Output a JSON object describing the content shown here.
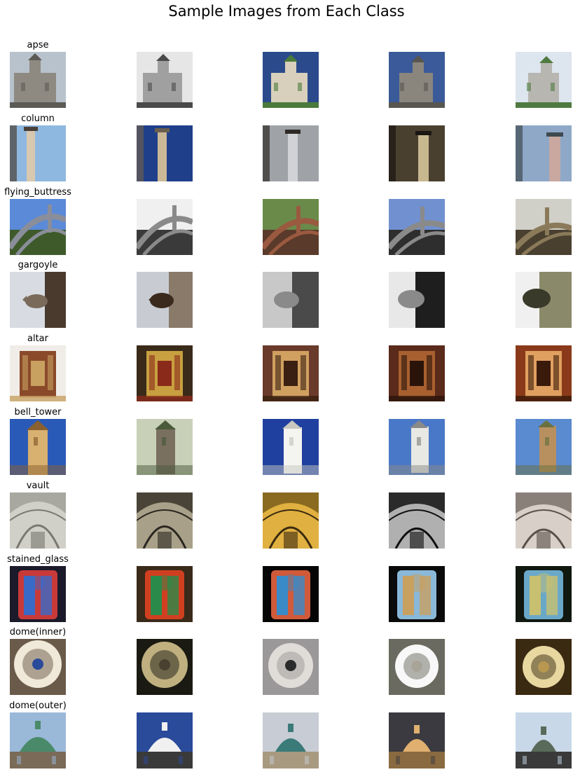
{
  "figure": {
    "title": "Sample Images from Each Class"
  },
  "rows": [
    {
      "label": "apse",
      "subject": "apse",
      "palettes": [
        [
          "#b8c2cc",
          "#8e8a82",
          "#5b5a55"
        ],
        [
          "#e6e6e6",
          "#a0a0a0",
          "#4a4a4a"
        ],
        [
          "#2a4a8c",
          "#d8d0bc",
          "#4a7a3a"
        ],
        [
          "#3a5a9a",
          "#8a867e",
          "#585650"
        ],
        [
          "#dde5ee",
          "#b8b6b0",
          "#4f7a3f"
        ]
      ]
    },
    {
      "label": "column",
      "subject": "column",
      "palettes": [
        [
          "#8fb8e0",
          "#d8c8b0",
          "#4a4038"
        ],
        [
          "#1f3f8a",
          "#cbb896",
          "#6a5e4e"
        ],
        [
          "#9fa3a8",
          "#d0d2d6",
          "#2e2a26"
        ],
        [
          "#4a4030",
          "#c8b890",
          "#1a1612"
        ],
        [
          "#8fa8c8",
          "#c8a8a0",
          "#3e4a50"
        ]
      ]
    },
    {
      "label": "flying_buttress",
      "subject": "buttress",
      "palettes": [
        [
          "#5a8ad8",
          "#8a8e9a",
          "#3e5a2a"
        ],
        [
          "#f0f0f0",
          "#8a8a8a",
          "#3a3a3a"
        ],
        [
          "#6a8a4a",
          "#9a5a40",
          "#5a3a2a"
        ],
        [
          "#7090d0",
          "#8a8a8a",
          "#2e2e2e"
        ],
        [
          "#d0d0c8",
          "#8a7a5a",
          "#4a4030"
        ]
      ]
    },
    {
      "label": "gargoyle",
      "subject": "gargoyle",
      "palettes": [
        [
          "#d8dce2",
          "#7a6a5a",
          "#4a3a2e"
        ],
        [
          "#c8ccd2",
          "#3a2a1e",
          "#8a7a6a"
        ],
        [
          "#c8c8c8",
          "#8a8a8a",
          "#4a4a4a"
        ],
        [
          "#e8e8e8",
          "#8a8a8a",
          "#1e1e1e"
        ],
        [
          "#f0f0f0",
          "#3a3a2a",
          "#8a8a6a"
        ]
      ]
    },
    {
      "label": "altar",
      "subject": "altar",
      "palettes": [
        [
          "#f0ede8",
          "#8a4a2a",
          "#c8a060"
        ],
        [
          "#3a2a1a",
          "#c8a040",
          "#8a2a1a"
        ],
        [
          "#6a3a2a",
          "#d0a060",
          "#3a2012"
        ],
        [
          "#5a2a1a",
          "#a86030",
          "#2a140a"
        ],
        [
          "#8a3a1a",
          "#e0a060",
          "#3a1a0a"
        ]
      ]
    },
    {
      "label": "bell_tower",
      "subject": "tower",
      "palettes": [
        [
          "#2a5ab8",
          "#d8b070",
          "#8a6030"
        ],
        [
          "#c8d0b8",
          "#7a7060",
          "#4a5a3a"
        ],
        [
          "#2040a0",
          "#f4f4f0",
          "#c8c8c0"
        ],
        [
          "#4a78c8",
          "#e8e8e4",
          "#8a8a88"
        ],
        [
          "#5a8ad0",
          "#b89060",
          "#6a7040"
        ]
      ]
    },
    {
      "label": "vault",
      "subject": "vault",
      "palettes": [
        [
          "#a8a8a0",
          "#d0d0c8",
          "#7a7870"
        ],
        [
          "#4a4438",
          "#a8a088",
          "#2a2620"
        ],
        [
          "#8a6a20",
          "#e0b040",
          "#3a2a10"
        ],
        [
          "#2a2a2a",
          "#b0b0b0",
          "#0e0e0e"
        ],
        [
          "#8a807a",
          "#d8d0c8",
          "#5a504a"
        ]
      ]
    },
    {
      "label": "stained_glass",
      "subject": "glass",
      "palettes": [
        [
          "#1a1a2a",
          "#c83a3a",
          "#3a6ac8"
        ],
        [
          "#3a2a1a",
          "#d04020",
          "#2a8a4a"
        ],
        [
          "#050505",
          "#d05a3a",
          "#3a8ac8"
        ],
        [
          "#0a0a0a",
          "#8ab8d8",
          "#c8a060"
        ],
        [
          "#101810",
          "#6aa8c8",
          "#c8c070"
        ]
      ]
    },
    {
      "label": "dome(inner)",
      "subject": "domein",
      "palettes": [
        [
          "#6a5a4a",
          "#f0e8d8",
          "#2a4a9a"
        ],
        [
          "#1a1a12",
          "#c0b080",
          "#4a4030"
        ],
        [
          "#9a9898",
          "#e0dcd8",
          "#2a2a2a"
        ],
        [
          "#6a6a60",
          "#f8f8f8",
          "#a8a498"
        ],
        [
          "#3a2a12",
          "#e8d8a0",
          "#b89850"
        ]
      ]
    },
    {
      "label": "dome(outer)",
      "subject": "domeout",
      "palettes": [
        [
          "#9ab8d8",
          "#4a8a6a",
          "#7a6a58"
        ],
        [
          "#2a4a9a",
          "#f0f0f0",
          "#3a3a3a"
        ],
        [
          "#c8ccd4",
          "#3a7a78",
          "#a89a80"
        ],
        [
          "#3a3a40",
          "#e0b070",
          "#8a6a40"
        ],
        [
          "#c8d8e8",
          "#5a6a5a",
          "#3a3a3a"
        ]
      ]
    }
  ]
}
